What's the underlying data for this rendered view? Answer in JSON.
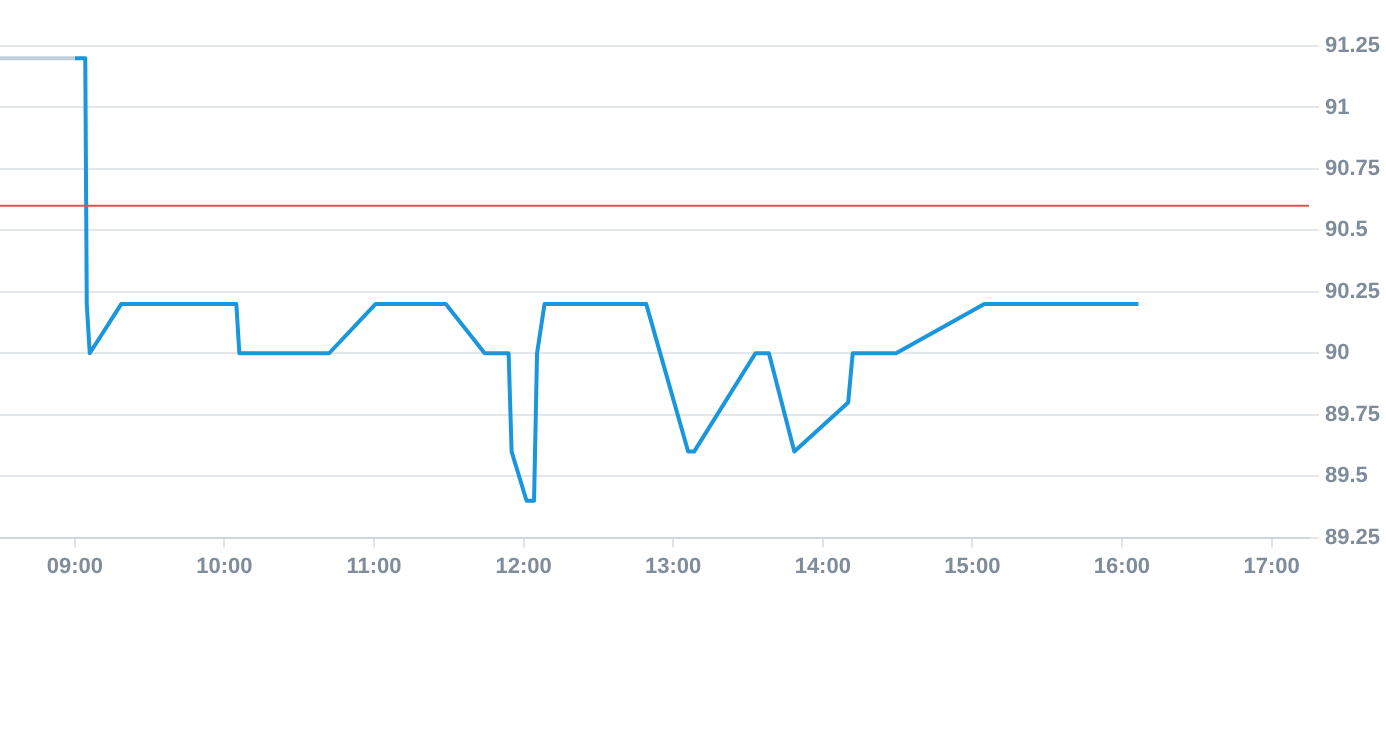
{
  "chart_data": {
    "type": "line",
    "xlim": [
      8.5,
      17.25
    ],
    "xticks": [
      {
        "value": 9,
        "label": "09:00"
      },
      {
        "value": 10,
        "label": "10:00"
      },
      {
        "value": 11,
        "label": "11:00"
      },
      {
        "value": 12,
        "label": "12:00"
      },
      {
        "value": 13,
        "label": "13:00"
      },
      {
        "value": 14,
        "label": "14:00"
      },
      {
        "value": 15,
        "label": "15:00"
      },
      {
        "value": 16,
        "label": "16:00"
      },
      {
        "value": 17,
        "label": "17:00"
      }
    ],
    "ylim": [
      89.25,
      91.25
    ],
    "yticks": [
      89.25,
      89.5,
      89.75,
      90,
      90.25,
      90.5,
      90.75,
      91,
      91.25
    ],
    "grid": "y",
    "marker": "none",
    "line_style": "solid",
    "series": [
      {
        "color": "#c2d0dc",
        "x": [
          8.5,
          9.0
        ],
        "values": [
          91.2,
          91.2
        ]
      },
      {
        "color": "#1a96dc",
        "x": [
          9.0,
          9.07,
          9.08,
          9.1,
          9.31,
          10.08,
          10.1,
          10.7,
          11.01,
          11.48,
          11.74,
          11.9,
          11.92,
          12.02,
          12.07,
          12.09,
          12.14,
          12.82,
          13.1,
          13.14,
          13.55,
          13.64,
          13.81,
          14.17,
          14.2,
          14.49,
          15.08,
          16.11
        ],
        "values": [
          91.2,
          91.2,
          90.2,
          90.0,
          90.2,
          90.2,
          90.0,
          90.0,
          90.2,
          90.2,
          90.0,
          90.0,
          89.6,
          89.4,
          89.4,
          90.0,
          90.2,
          90.2,
          89.6,
          89.6,
          90.0,
          90.0,
          89.6,
          89.8,
          90.0,
          90.0,
          90.2,
          90.2
        ]
      }
    ],
    "ref_lines": [
      {
        "axis": "y",
        "value": 90.6,
        "color": "#d9534f",
        "line_style": "solid"
      }
    ]
  }
}
